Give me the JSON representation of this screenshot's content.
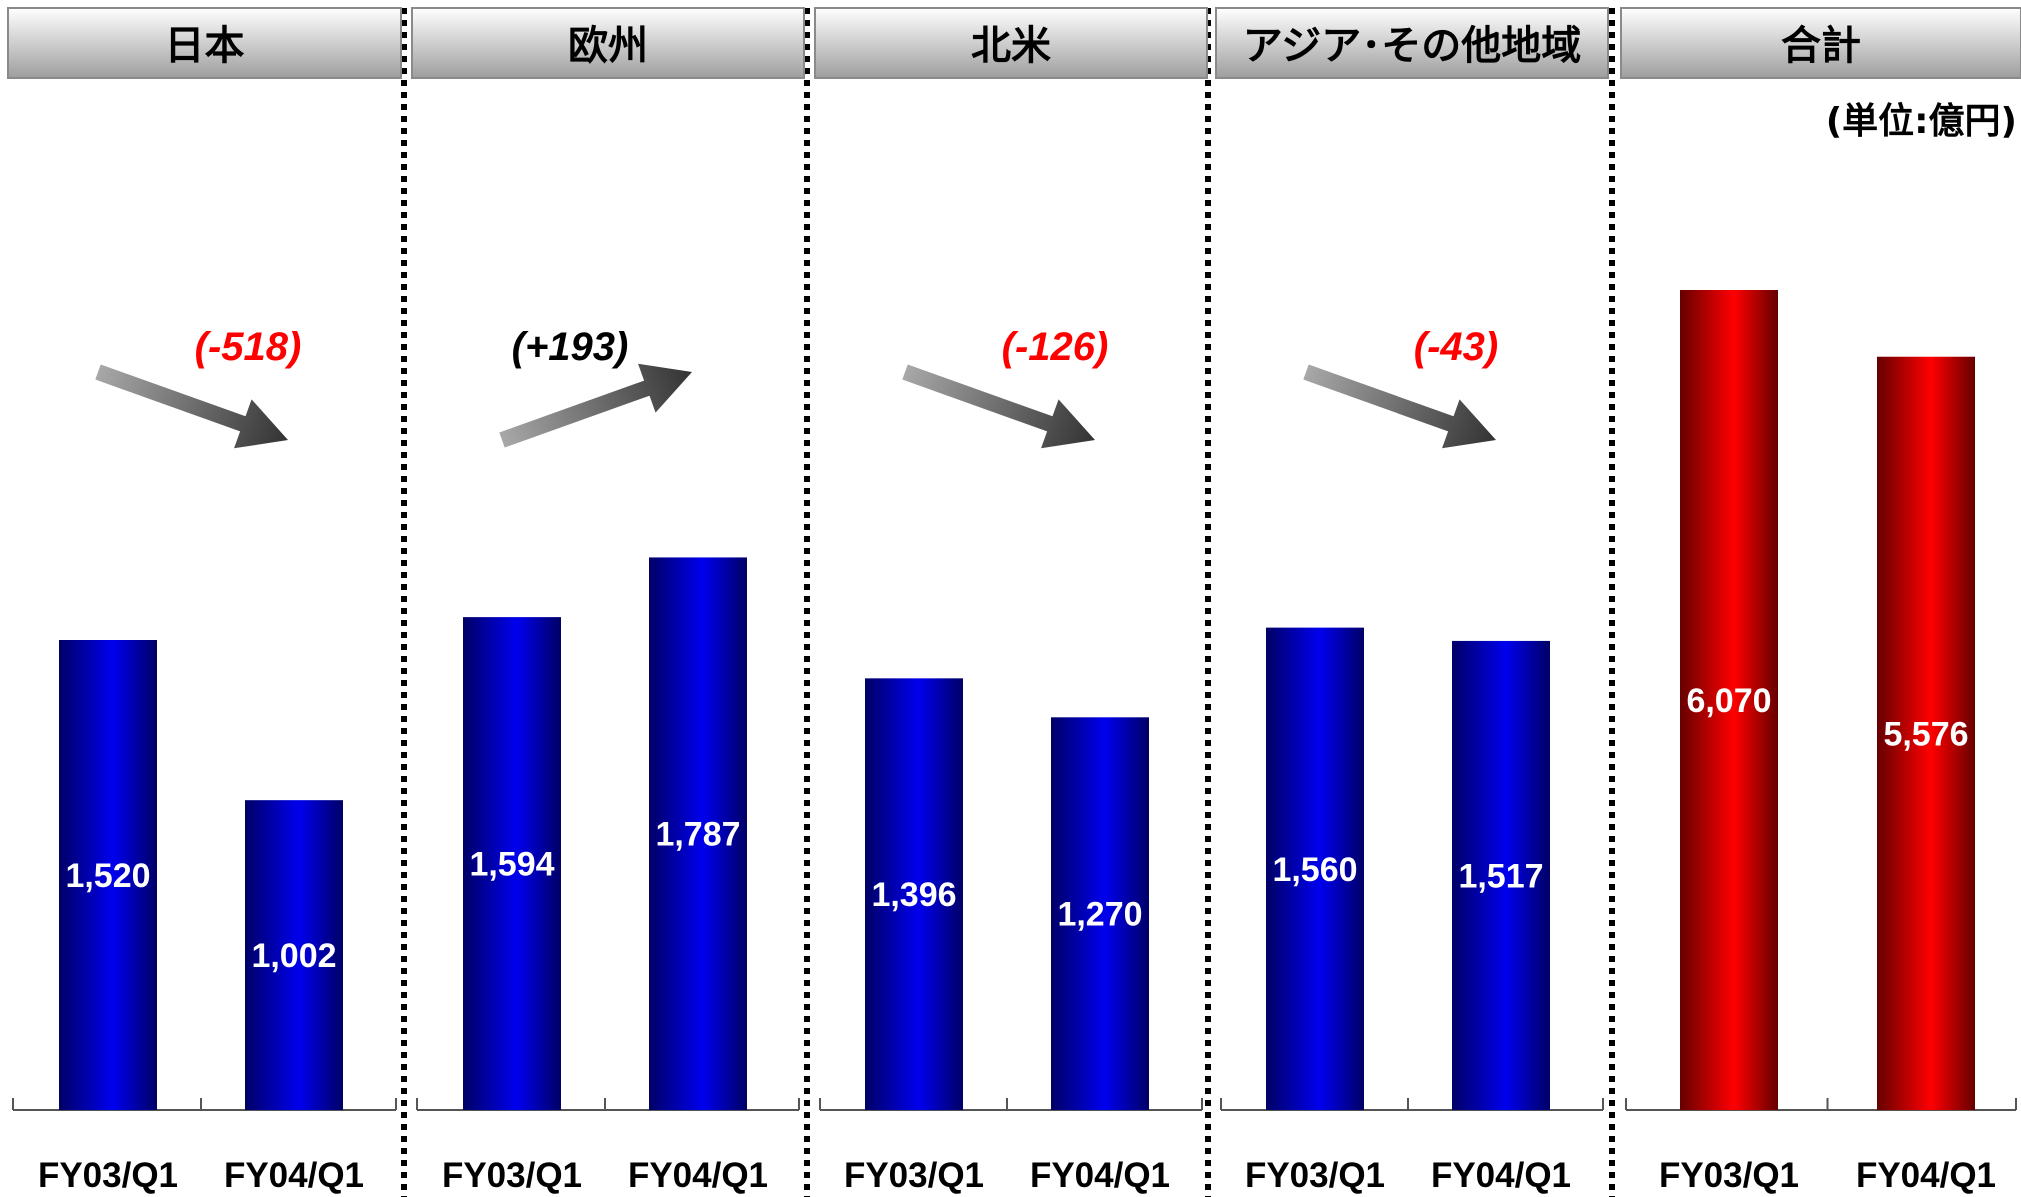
{
  "unit_label": "(単位:億円)",
  "colors": {
    "bar_regular": "#0000ee",
    "bar_regular_dark": "#000066",
    "bar_total": "#ff0000",
    "bar_total_dark": "#660000",
    "change_negative": "#ff0000",
    "change_positive": "#000000",
    "arrow": "#555555",
    "header_gradient_top": "#ffffff",
    "header_gradient_bottom": "#9e9e9e"
  },
  "chart_data": [
    {
      "type": "bar",
      "title": "日本",
      "categories": [
        "FY03/Q1",
        "FY04/Q1"
      ],
      "values": [
        1520,
        1002
      ],
      "value_labels": [
        "1,520",
        "1,002"
      ],
      "change_label": "(-518)",
      "change_direction": "down",
      "ylim": [
        0,
        2000
      ]
    },
    {
      "type": "bar",
      "title": "欧州",
      "categories": [
        "FY03/Q1",
        "FY04/Q1"
      ],
      "values": [
        1594,
        1787
      ],
      "value_labels": [
        "1,594",
        "1,787"
      ],
      "change_label": "(+193)",
      "change_direction": "up",
      "ylim": [
        0,
        2000
      ]
    },
    {
      "type": "bar",
      "title": "北米",
      "categories": [
        "FY03/Q1",
        "FY04/Q1"
      ],
      "values": [
        1396,
        1270
      ],
      "value_labels": [
        "1,396",
        "1,270"
      ],
      "change_label": "(-126)",
      "change_direction": "down",
      "ylim": [
        0,
        2000
      ]
    },
    {
      "type": "bar",
      "title": "アジア･その他地域",
      "categories": [
        "FY03/Q1",
        "FY04/Q1"
      ],
      "values": [
        1560,
        1517
      ],
      "value_labels": [
        "1,560",
        "1,517"
      ],
      "change_label": "(-43)",
      "change_direction": "down",
      "ylim": [
        0,
        2000
      ]
    },
    {
      "type": "bar",
      "title": "合計",
      "categories": [
        "FY03/Q1",
        "FY04/Q1"
      ],
      "values": [
        6070,
        5576
      ],
      "value_labels": [
        "6,070",
        "5,576"
      ],
      "change_label": "",
      "change_direction": "",
      "ylim": [
        0,
        7500
      ]
    }
  ]
}
